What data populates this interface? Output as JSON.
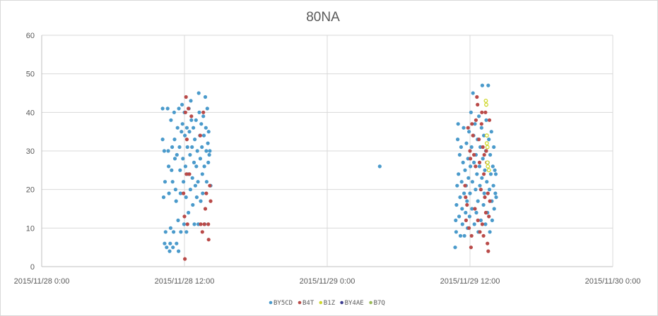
{
  "chart_data": {
    "type": "scatter",
    "title": "80NA",
    "xlabel": "",
    "ylabel": "",
    "xlim": [
      "2015-11-28 00:00",
      "2015-11-30 00:00"
    ],
    "ylim": [
      0,
      60
    ],
    "x_tick_labels": [
      "2015/11/28 0:00",
      "2015/11/28 12:00",
      "2015/11/29 0:00",
      "2015/11/29 12:00",
      "2015/11/30 0:00"
    ],
    "y_tick_labels": [
      "0",
      "10",
      "20",
      "30",
      "40",
      "50",
      "60"
    ],
    "grid": true,
    "legend_position": "bottom",
    "series": [
      {
        "name": "BY5CD",
        "color": "#4a9acb",
        "points": [
          [
            "2015-11-28 10:10",
            41
          ],
          [
            "2015-11-28 10:10",
            33
          ],
          [
            "2015-11-28 10:18",
            30
          ],
          [
            "2015-11-28 10:15",
            18
          ],
          [
            "2015-11-28 10:22",
            22
          ],
          [
            "2015-11-28 10:25",
            9
          ],
          [
            "2015-11-28 10:20",
            6
          ],
          [
            "2015-11-28 10:30",
            5
          ],
          [
            "2015-11-28 10:35",
            41
          ],
          [
            "2015-11-28 10:38",
            30
          ],
          [
            "2015-11-28 10:40",
            26
          ],
          [
            "2015-11-28 10:42",
            19
          ],
          [
            "2015-11-28 10:45",
            4
          ],
          [
            "2015-11-28 10:48",
            6
          ],
          [
            "2015-11-28 10:50",
            10
          ],
          [
            "2015-11-28 10:52",
            38
          ],
          [
            "2015-11-28 10:55",
            25
          ],
          [
            "2015-11-28 10:58",
            31
          ],
          [
            "2015-11-28 11:00",
            22
          ],
          [
            "2015-11-28 11:02",
            5
          ],
          [
            "2015-11-28 11:05",
            9
          ],
          [
            "2015-11-28 11:08",
            40
          ],
          [
            "2015-11-28 11:10",
            33
          ],
          [
            "2015-11-28 11:12",
            28
          ],
          [
            "2015-11-28 11:15",
            20
          ],
          [
            "2015-11-28 11:18",
            17
          ],
          [
            "2015-11-28 11:20",
            6
          ],
          [
            "2015-11-28 11:22",
            29
          ],
          [
            "2015-11-28 11:25",
            36
          ],
          [
            "2015-11-28 11:28",
            12
          ],
          [
            "2015-11-28 11:30",
            4
          ],
          [
            "2015-11-28 11:32",
            41
          ],
          [
            "2015-11-28 11:35",
            31
          ],
          [
            "2015-11-28 11:38",
            25
          ],
          [
            "2015-11-28 11:40",
            19
          ],
          [
            "2015-11-28 11:42",
            9
          ],
          [
            "2015-11-28 11:45",
            35
          ],
          [
            "2015-11-28 11:48",
            42
          ],
          [
            "2015-11-28 11:50",
            37
          ],
          [
            "2015-11-28 11:52",
            28
          ],
          [
            "2015-11-28 11:55",
            22
          ],
          [
            "2015-11-28 11:58",
            11
          ],
          [
            "2015-11-28 12:00",
            40
          ],
          [
            "2015-11-28 12:02",
            34
          ],
          [
            "2015-11-28 12:05",
            26
          ],
          [
            "2015-11-28 12:08",
            18
          ],
          [
            "2015-11-28 12:10",
            9
          ],
          [
            "2015-11-28 12:12",
            36
          ],
          [
            "2015-11-28 12:15",
            31
          ],
          [
            "2015-11-28 12:18",
            24
          ],
          [
            "2015-11-28 12:20",
            14
          ],
          [
            "2015-11-28 12:22",
            41
          ],
          [
            "2015-11-28 12:25",
            35
          ],
          [
            "2015-11-28 12:28",
            29
          ],
          [
            "2015-11-28 12:30",
            20
          ],
          [
            "2015-11-28 12:32",
            43
          ],
          [
            "2015-11-28 12:35",
            38
          ],
          [
            "2015-11-28 12:38",
            31
          ],
          [
            "2015-11-28 12:40",
            23
          ],
          [
            "2015-11-28 12:42",
            16
          ],
          [
            "2015-11-28 12:45",
            36
          ],
          [
            "2015-11-28 12:48",
            27
          ],
          [
            "2015-11-28 12:50",
            11
          ],
          [
            "2015-11-28 12:52",
            33
          ],
          [
            "2015-11-28 12:55",
            21
          ],
          [
            "2015-11-28 12:58",
            38
          ],
          [
            "2015-11-28 13:00",
            26
          ],
          [
            "2015-11-28 13:02",
            18
          ],
          [
            "2015-11-28 13:05",
            30
          ],
          [
            "2015-11-28 13:08",
            22
          ],
          [
            "2015-11-28 13:10",
            11
          ],
          [
            "2015-11-28 13:12",
            45
          ],
          [
            "2015-11-28 13:15",
            40
          ],
          [
            "2015-11-28 13:18",
            34
          ],
          [
            "2015-11-28 13:20",
            28
          ],
          [
            "2015-11-28 13:22",
            17
          ],
          [
            "2015-11-28 13:25",
            37
          ],
          [
            "2015-11-28 13:28",
            31
          ],
          [
            "2015-11-28 13:30",
            24
          ],
          [
            "2015-11-28 13:32",
            19
          ],
          [
            "2015-11-28 13:35",
            39
          ],
          [
            "2015-11-28 13:38",
            34
          ],
          [
            "2015-11-28 13:40",
            26
          ],
          [
            "2015-11-28 13:42",
            11
          ],
          [
            "2015-11-28 13:45",
            44
          ],
          [
            "2015-11-28 13:48",
            36
          ],
          [
            "2015-11-28 13:50",
            30
          ],
          [
            "2015-11-28 13:52",
            22
          ],
          [
            "2015-11-28 13:55",
            41
          ],
          [
            "2015-11-28 13:58",
            32
          ],
          [
            "2015-11-28 14:00",
            27
          ],
          [
            "2015-11-28 14:02",
            35
          ],
          [
            "2015-11-28 14:05",
            29
          ],
          [
            "2015-11-28 14:08",
            30
          ],
          [
            "2015-11-28 14:12",
            21
          ],
          [
            "2015-11-29 04:25",
            26
          ],
          [
            "2015-11-29 10:45",
            5
          ],
          [
            "2015-11-29 10:48",
            12
          ],
          [
            "2015-11-29 10:50",
            9
          ],
          [
            "2015-11-29 10:52",
            16
          ],
          [
            "2015-11-29 10:55",
            21
          ],
          [
            "2015-11-29 10:58",
            33
          ],
          [
            "2015-11-29 11:00",
            37
          ],
          [
            "2015-11-29 11:02",
            24
          ],
          [
            "2015-11-29 11:05",
            13
          ],
          [
            "2015-11-29 11:08",
            29
          ],
          [
            "2015-11-29 11:10",
            18
          ],
          [
            "2015-11-29 11:12",
            8
          ],
          [
            "2015-11-29 11:15",
            31
          ],
          [
            "2015-11-29 11:18",
            22
          ],
          [
            "2015-11-29 11:20",
            15
          ],
          [
            "2015-11-29 11:22",
            11
          ],
          [
            "2015-11-29 11:25",
            27
          ],
          [
            "2015-11-29 11:28",
            36
          ],
          [
            "2015-11-29 11:30",
            19
          ],
          [
            "2015-11-29 11:32",
            8
          ],
          [
            "2015-11-29 11:35",
            25
          ],
          [
            "2015-11-29 11:38",
            14
          ],
          [
            "2015-11-29 11:40",
            21
          ],
          [
            "2015-11-29 11:42",
            32
          ],
          [
            "2015-11-29 11:45",
            17
          ],
          [
            "2015-11-29 11:48",
            10
          ],
          [
            "2015-11-29 11:50",
            28
          ],
          [
            "2015-11-29 11:52",
            23
          ],
          [
            "2015-11-29 11:55",
            35
          ],
          [
            "2015-11-29 11:58",
            13
          ],
          [
            "2015-11-29 12:00",
            19
          ],
          [
            "2015-11-29 12:02",
            26
          ],
          [
            "2015-11-29 12:05",
            40
          ],
          [
            "2015-11-29 12:08",
            31
          ],
          [
            "2015-11-29 12:10",
            15
          ],
          [
            "2015-11-29 12:12",
            22
          ],
          [
            "2015-11-29 12:15",
            45
          ],
          [
            "2015-11-29 12:18",
            34
          ],
          [
            "2015-11-29 12:20",
            27
          ],
          [
            "2015-11-29 12:22",
            11
          ],
          [
            "2015-11-29 12:25",
            37
          ],
          [
            "2015-11-29 12:28",
            20
          ],
          [
            "2015-11-29 12:30",
            29
          ],
          [
            "2015-11-29 12:32",
            14
          ],
          [
            "2015-11-29 12:35",
            24
          ],
          [
            "2015-11-29 12:38",
            33
          ],
          [
            "2015-11-29 12:40",
            17
          ],
          [
            "2015-11-29 12:42",
            9
          ],
          [
            "2015-11-29 12:45",
            39
          ],
          [
            "2015-11-29 12:48",
            26
          ],
          [
            "2015-11-29 12:50",
            21
          ],
          [
            "2015-11-29 12:52",
            31
          ],
          [
            "2015-11-29 12:55",
            12
          ],
          [
            "2015-11-29 12:58",
            36
          ],
          [
            "2015-11-29 13:00",
            23
          ],
          [
            "2015-11-29 13:02",
            47
          ],
          [
            "2015-11-29 13:05",
            28
          ],
          [
            "2015-11-29 13:08",
            16
          ],
          [
            "2015-11-29 13:10",
            34
          ],
          [
            "2015-11-29 13:12",
            19
          ],
          [
            "2015-11-29 13:15",
            25
          ],
          [
            "2015-11-29 13:18",
            11
          ],
          [
            "2015-11-29 13:20",
            30
          ],
          [
            "2015-11-29 13:22",
            38
          ],
          [
            "2015-11-29 13:25",
            22
          ],
          [
            "2015-11-29 13:28",
            14
          ],
          [
            "2015-11-29 13:30",
            27
          ],
          [
            "2015-11-29 13:32",
            47
          ],
          [
            "2015-11-29 13:35",
            33
          ],
          [
            "2015-11-29 13:38",
            20
          ],
          [
            "2015-11-29 13:40",
            9
          ],
          [
            "2015-11-29 13:42",
            29
          ],
          [
            "2015-11-29 13:45",
            24
          ],
          [
            "2015-11-29 13:48",
            35
          ],
          [
            "2015-11-29 13:50",
            17
          ],
          [
            "2015-11-29 13:52",
            12
          ],
          [
            "2015-11-29 13:55",
            26
          ],
          [
            "2015-11-29 13:58",
            21
          ],
          [
            "2015-11-29 14:00",
            31
          ],
          [
            "2015-11-29 14:02",
            15
          ],
          [
            "2015-11-29 14:05",
            25
          ],
          [
            "2015-11-29 14:08",
            19
          ],
          [
            "2015-11-29 14:10",
            24
          ],
          [
            "2015-11-29 14:12",
            18
          ]
        ]
      },
      {
        "name": "B4T",
        "color": "#b94a48",
        "points": [
          [
            "2015-11-28 11:55",
            19
          ],
          [
            "2015-11-28 12:00",
            13
          ],
          [
            "2015-11-28 12:02",
            2
          ],
          [
            "2015-11-28 12:05",
            40
          ],
          [
            "2015-11-28 12:08",
            44
          ],
          [
            "2015-11-28 12:10",
            24
          ],
          [
            "2015-11-28 12:12",
            33
          ],
          [
            "2015-11-28 12:15",
            11
          ],
          [
            "2015-11-28 12:20",
            41
          ],
          [
            "2015-11-28 12:25",
            24
          ],
          [
            "2015-11-28 12:35",
            39
          ],
          [
            "2015-11-28 13:20",
            34
          ],
          [
            "2015-11-28 13:22",
            11
          ],
          [
            "2015-11-28 13:30",
            9
          ],
          [
            "2015-11-28 13:35",
            40
          ],
          [
            "2015-11-28 13:40",
            11
          ],
          [
            "2015-11-28 13:45",
            15
          ],
          [
            "2015-11-28 13:50",
            19
          ],
          [
            "2015-11-28 14:00",
            11
          ],
          [
            "2015-11-28 14:02",
            7
          ],
          [
            "2015-11-28 14:08",
            21
          ],
          [
            "2015-11-28 14:12",
            17
          ],
          [
            "2015-11-29 11:35",
            21
          ],
          [
            "2015-11-29 11:38",
            18
          ],
          [
            "2015-11-29 11:40",
            12
          ],
          [
            "2015-11-29 11:45",
            16
          ],
          [
            "2015-11-29 11:50",
            36
          ],
          [
            "2015-11-29 11:55",
            10
          ],
          [
            "2015-11-29 12:00",
            30
          ],
          [
            "2015-11-29 12:02",
            28
          ],
          [
            "2015-11-29 12:05",
            5
          ],
          [
            "2015-11-29 12:08",
            8
          ],
          [
            "2015-11-29 12:10",
            37
          ],
          [
            "2015-11-29 12:15",
            34
          ],
          [
            "2015-11-29 12:20",
            29
          ],
          [
            "2015-11-29 12:25",
            15
          ],
          [
            "2015-11-29 12:28",
            26
          ],
          [
            "2015-11-29 12:30",
            38
          ],
          [
            "2015-11-29 12:35",
            44
          ],
          [
            "2015-11-29 12:38",
            42
          ],
          [
            "2015-11-29 12:40",
            12
          ],
          [
            "2015-11-29 12:45",
            33
          ],
          [
            "2015-11-29 12:48",
            27
          ],
          [
            "2015-11-29 12:50",
            9
          ],
          [
            "2015-11-29 12:55",
            20
          ],
          [
            "2015-11-29 12:58",
            37
          ],
          [
            "2015-11-29 13:00",
            40
          ],
          [
            "2015-11-29 13:02",
            11
          ],
          [
            "2015-11-29 13:05",
            31
          ],
          [
            "2015-11-29 13:08",
            8
          ],
          [
            "2015-11-29 13:10",
            24
          ],
          [
            "2015-11-29 13:12",
            29
          ],
          [
            "2015-11-29 13:15",
            18
          ],
          [
            "2015-11-29 13:18",
            40
          ],
          [
            "2015-11-29 13:20",
            14
          ],
          [
            "2015-11-29 13:22",
            30
          ],
          [
            "2015-11-29 13:25",
            27
          ],
          [
            "2015-11-29 13:28",
            6
          ],
          [
            "2015-11-29 13:30",
            19
          ],
          [
            "2015-11-29 13:32",
            4
          ],
          [
            "2015-11-29 13:35",
            13
          ],
          [
            "2015-11-29 13:38",
            38
          ],
          [
            "2015-11-29 13:40",
            17
          ]
        ]
      },
      {
        "name": "B1Z",
        "color": "#cfd82e",
        "points": [
          [
            "2015-11-29 13:20",
            43
          ],
          [
            "2015-11-29 13:22",
            42
          ],
          [
            "2015-11-29 13:25",
            34
          ],
          [
            "2015-11-29 13:25",
            32
          ],
          [
            "2015-11-29 13:28",
            31
          ],
          [
            "2015-11-29 13:28",
            27
          ],
          [
            "2015-11-29 13:30",
            26
          ],
          [
            "2015-11-29 13:35",
            25
          ]
        ]
      },
      {
        "name": "BY4AE",
        "color": "#3b3b8f",
        "points": []
      },
      {
        "name": "B7Q",
        "color": "#9bbb59",
        "points": []
      }
    ]
  }
}
